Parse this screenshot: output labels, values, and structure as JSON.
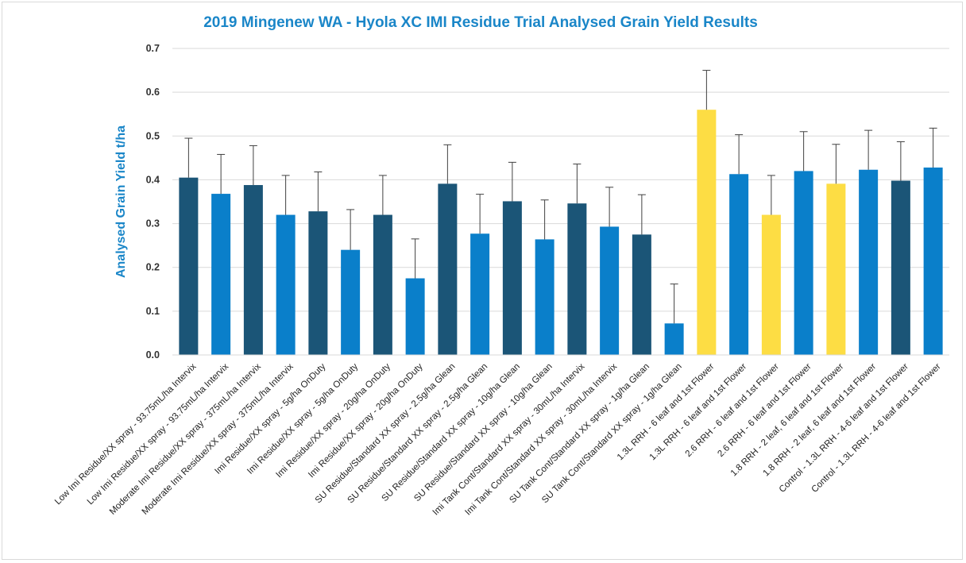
{
  "chart_data": {
    "type": "bar",
    "title": "2019 Mingenew WA - Hyola XC IMI Residue Trial Analysed Grain Yield Results",
    "xlabel": "",
    "ylabel": "Analysed Grain Yield t/ha",
    "ylim": [
      0,
      0.7
    ],
    "yticks": [
      "0.0",
      "0.1",
      "0.2",
      "0.3",
      "0.4",
      "0.5",
      "0.6",
      "0.7"
    ],
    "grid": true,
    "colors": {
      "dark_blue": "#1b5577",
      "blue": "#0a7fca",
      "yellow": "#fddd44",
      "error_bar": "#404040",
      "grid": "#d9d9d9"
    },
    "categories": [
      "Low Imi Residue/XX spray - 93.75mL/ha Intervix",
      "Low Imi Residue/XX spray - 93.75mL/ha Intervix",
      "Moderate Imi Residue/XX spray - 375mL/ha Intervix",
      "Moderate Imi Residue/XX spray - 375mL/ha Intervix",
      "Imi Residue/XX spray - 5g/ha OnDuty",
      "Imi Residue/XX spray - 5g/ha OnDuty",
      "Imi Residue/XX spray - 20g/ha OnDuty",
      "Imi Residue/XX spray - 20g/ha OnDuty",
      "SU Residue/Standard XX spray - 2.5g/ha Glean",
      "SU Residue/Standard XX spray - 2.5g/ha Glean",
      "SU Residue/Standard XX spray - 10g/ha Glean",
      "SU Residue/Standard XX spray - 10g/ha Glean",
      "Imi Tank Cont/Standard XX spray - 30mL/ha Intervix",
      "Imi Tank Cont/Standard XX spray - 30mL/ha Intervix",
      "SU Tank Cont/Standard XX spray - 1g/ha Glean",
      "SU Tank Cont/Standard XX spray - 1g/ha Glean",
      "1.3L RRH - 6 leaf and 1st Flower",
      "1.3L RRH - 6 leaf and 1st Flower",
      "2.6 RRH - 6 leaf and 1st Flower",
      "2.6 RRH - 6 leaf and 1st Flower",
      "1.8 RRH - 2 leaf, 6 leaf and 1st Flower",
      "1.8 RRH - 2 leaf, 6 leaf and 1st Flower",
      "Control - 1.3L RRH - 4-6 leaf and 1st Flower",
      "Control - 1.3L RRH - 4-6 leaf and 1st Flower"
    ],
    "values": [
      0.405,
      0.368,
      0.388,
      0.32,
      0.328,
      0.24,
      0.32,
      0.175,
      0.391,
      0.277,
      0.351,
      0.264,
      0.346,
      0.293,
      0.275,
      0.072,
      0.56,
      0.413,
      0.32,
      0.42,
      0.391,
      0.423,
      0.398,
      0.428
    ],
    "error_upper": [
      0.495,
      0.458,
      0.478,
      0.41,
      0.418,
      0.332,
      0.41,
      0.265,
      0.48,
      0.367,
      0.44,
      0.354,
      0.436,
      0.383,
      0.366,
      0.162,
      0.65,
      0.503,
      0.41,
      0.51,
      0.481,
      0.513,
      0.487,
      0.518
    ],
    "bar_colors": [
      "dark_blue",
      "blue",
      "dark_blue",
      "blue",
      "dark_blue",
      "blue",
      "dark_blue",
      "blue",
      "dark_blue",
      "blue",
      "dark_blue",
      "blue",
      "dark_blue",
      "blue",
      "dark_blue",
      "blue",
      "yellow",
      "blue",
      "yellow",
      "blue",
      "yellow",
      "blue",
      "dark_blue",
      "blue"
    ]
  }
}
